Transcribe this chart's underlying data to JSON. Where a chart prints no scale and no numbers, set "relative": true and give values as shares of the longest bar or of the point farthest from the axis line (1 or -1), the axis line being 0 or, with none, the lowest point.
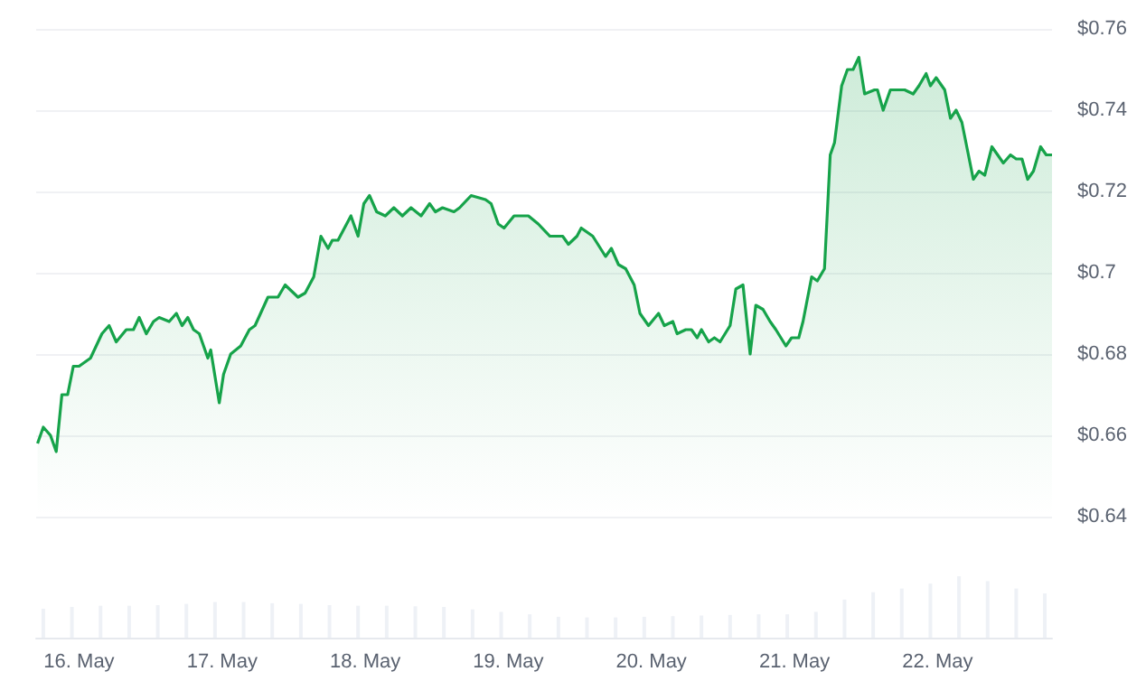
{
  "chart_data": [
    {
      "type": "area",
      "marker": "none",
      "grid": "y",
      "tick_labels": "y",
      "xlim": [
        "--05-15T16:48",
        "--05-22T19:12"
      ],
      "ylim": [
        0.64,
        0.76
      ],
      "yticks": [
        {
          "value": 0.64,
          "label": "$0.64"
        },
        {
          "value": 0.66,
          "label": "$0.66"
        },
        {
          "value": 0.68,
          "label": "$0.68"
        },
        {
          "value": 0.7,
          "label": "$0.7"
        },
        {
          "value": 0.72,
          "label": "$0.72"
        },
        {
          "value": 0.74,
          "label": "$0.74"
        },
        {
          "value": 0.76,
          "label": "$0.76"
        }
      ],
      "series": [
        {
          "color": "#16a34a",
          "x": [
            "--05-15T17:02",
            "--05-15T18:00",
            "--05-15T19:12",
            "--05-15T20:10",
            "--05-15T21:07",
            "--05-15T22:05",
            "--05-15T23:02",
            "--05-16T00:00",
            "--05-16T01:55",
            "--05-16T03:50",
            "--05-16T05:02",
            "--05-16T06:14",
            "--05-16T07:55",
            "--05-16T09:07",
            "--05-16T10:05",
            "--05-16T11:17",
            "--05-16T12:29",
            "--05-16T13:26",
            "--05-16T15:07",
            "--05-16T16:19",
            "--05-16T17:17",
            "--05-16T18:14",
            "--05-16T19:12",
            "--05-16T20:10",
            "--05-16T21:36",
            "--05-16T22:05",
            "--05-16T23:31",
            "--05-17T00:14",
            "--05-17T01:26",
            "--05-17T03:07",
            "--05-17T04:34",
            "--05-17T05:31",
            "--05-17T07:41",
            "--05-17T09:22",
            "--05-17T10:34",
            "--05-17T12:43",
            "--05-17T13:55",
            "--05-17T15:22",
            "--05-17T16:34",
            "--05-17T17:46",
            "--05-17T18:29",
            "--05-17T19:26",
            "--05-17T21:36",
            "--05-17T22:48",
            "--05-17T23:46",
            "--05-18T00:43",
            "--05-18T01:55",
            "--05-18T03:22",
            "--05-18T04:48",
            "--05-18T06:14",
            "--05-18T07:41",
            "--05-18T09:22",
            "--05-18T10:48",
            "--05-18T11:46",
            "--05-18T12:58",
            "--05-18T14:53",
            "--05-18T15:50",
            "--05-18T17:46",
            "--05-18T20:10",
            "--05-18T21:07",
            "--05-18T22:19",
            "--05-18T23:17",
            "--05-19T00:58",
            "--05-19T01:55",
            "--05-19T03:22",
            "--05-19T05:02",
            "--05-19T06:58",
            "--05-19T09:07",
            "--05-19T10:05",
            "--05-19T11:31",
            "--05-19T12:14",
            "--05-19T14:10",
            "--05-19T16:19",
            "--05-19T17:17",
            "--05-19T18:29",
            "--05-19T19:41",
            "--05-19T21:07",
            "--05-19T22:05",
            "--05-19T23:31",
            "--05-20T01:12",
            "--05-20T02:10",
            "--05-20T03:36",
            "--05-20T04:19",
            "--05-20T05:46",
            "--05-20T06:43",
            "--05-20T07:41",
            "--05-20T08:24",
            "--05-20T09:36",
            "--05-20T10:34",
            "--05-20T11:31",
            "--05-20T13:12",
            "--05-20T14:10",
            "--05-20T15:22",
            "--05-20T16:34",
            "--05-20T17:31",
            "--05-20T18:43",
            "--05-20T19:55",
            "--05-20T20:53",
            "--05-20T22:34",
            "--05-20T23:31",
            "--05-21T00:43",
            "--05-21T01:26",
            "--05-21T02:53",
            "--05-21T03:50",
            "--05-21T05:02",
            "--05-21T06:00",
            "--05-21T06:43",
            "--05-21T07:55",
            "--05-21T08:53",
            "--05-21T09:50",
            "--05-21T10:48",
            "--05-21T11:46",
            "--05-21T13:26",
            "--05-21T13:55",
            "--05-21T14:53",
            "--05-21T16:05",
            "--05-21T18:29",
            "--05-21T19:55",
            "--05-21T20:53",
            "--05-21T22:05",
            "--05-21T22:48",
            "--05-21T23:46",
            "--05-22T01:12",
            "--05-22T02:10",
            "--05-22T03:07",
            "--05-22T04:05",
            "--05-22T06:00",
            "--05-22T06:58",
            "--05-22T07:55",
            "--05-22T09:07",
            "--05-22T10:05",
            "--05-22T11:02",
            "--05-22T12:14",
            "--05-22T13:12",
            "--05-22T14:10",
            "--05-22T15:07",
            "--05-22T16:05",
            "--05-22T17:17",
            "--05-22T18:14",
            "--05-22T19:12"
          ],
          "values": [
            0.658,
            0.662,
            0.66,
            0.656,
            0.67,
            0.67,
            0.677,
            0.677,
            0.679,
            0.685,
            0.687,
            0.683,
            0.686,
            0.686,
            0.689,
            0.685,
            0.688,
            0.689,
            0.688,
            0.69,
            0.687,
            0.689,
            0.686,
            0.685,
            0.679,
            0.681,
            0.668,
            0.675,
            0.68,
            0.682,
            0.686,
            0.687,
            0.694,
            0.694,
            0.697,
            0.694,
            0.695,
            0.699,
            0.709,
            0.706,
            0.708,
            0.708,
            0.714,
            0.709,
            0.717,
            0.719,
            0.715,
            0.714,
            0.716,
            0.714,
            0.716,
            0.714,
            0.717,
            0.715,
            0.716,
            0.715,
            0.716,
            0.719,
            0.718,
            0.717,
            0.712,
            0.711,
            0.714,
            0.714,
            0.714,
            0.712,
            0.709,
            0.709,
            0.707,
            0.709,
            0.711,
            0.709,
            0.704,
            0.706,
            0.702,
            0.701,
            0.697,
            0.69,
            0.687,
            0.69,
            0.687,
            0.688,
            0.685,
            0.686,
            0.686,
            0.684,
            0.686,
            0.683,
            0.684,
            0.683,
            0.687,
            0.696,
            0.697,
            0.68,
            0.692,
            0.691,
            0.688,
            0.686,
            0.682,
            0.684,
            0.684,
            0.688,
            0.699,
            0.698,
            0.701,
            0.729,
            0.732,
            0.746,
            0.75,
            0.75,
            0.753,
            0.744,
            0.745,
            0.745,
            0.74,
            0.745,
            0.745,
            0.744,
            0.746,
            0.749,
            0.746,
            0.748,
            0.745,
            0.738,
            0.74,
            0.737,
            0.723,
            0.725,
            0.724,
            0.731,
            0.729,
            0.727,
            0.729,
            0.728,
            0.728,
            0.723,
            0.725,
            0.731,
            0.729,
            0.729
          ]
        }
      ]
    },
    {
      "type": "bar",
      "relative": true,
      "tick_labels": "x",
      "xlim": [
        "--05-15T16:48",
        "--05-22T19:12"
      ],
      "xticks": [
        {
          "value": "--05-16",
          "label": "16. May"
        },
        {
          "value": "--05-17",
          "label": "17. May"
        },
        {
          "value": "--05-18",
          "label": "18. May"
        },
        {
          "value": "--05-19",
          "label": "19. May"
        },
        {
          "value": "--05-20",
          "label": "20. May"
        },
        {
          "value": "--05-21",
          "label": "21. May"
        },
        {
          "value": "--05-22",
          "label": "22. May"
        }
      ],
      "series": [
        {
          "color": "#eef1f6",
          "x": [
            "--05-15T18:00",
            "--05-15T22:48",
            "--05-16T03:36",
            "--05-16T08:24",
            "--05-16T13:12",
            "--05-16T18:00",
            "--05-16T22:48",
            "--05-17T03:36",
            "--05-17T08:24",
            "--05-17T13:12",
            "--05-17T18:00",
            "--05-17T22:48",
            "--05-18T03:36",
            "--05-18T08:24",
            "--05-18T13:12",
            "--05-18T18:00",
            "--05-18T22:48",
            "--05-19T03:36",
            "--05-19T08:24",
            "--05-19T13:12",
            "--05-19T18:00",
            "--05-19T22:48",
            "--05-20T03:36",
            "--05-20T08:24",
            "--05-20T13:12",
            "--05-20T18:00",
            "--05-20T22:48",
            "--05-21T03:36",
            "--05-21T08:24",
            "--05-21T13:12",
            "--05-21T18:00",
            "--05-21T22:48",
            "--05-22T03:36",
            "--05-22T08:24",
            "--05-22T13:12",
            "--05-22T18:00"
          ],
          "values": [
            0.47,
            0.5,
            0.52,
            0.52,
            0.53,
            0.55,
            0.58,
            0.58,
            0.56,
            0.55,
            0.53,
            0.52,
            0.52,
            0.51,
            0.5,
            0.46,
            0.42,
            0.38,
            0.34,
            0.33,
            0.33,
            0.34,
            0.35,
            0.36,
            0.37,
            0.38,
            0.38,
            0.42,
            0.62,
            0.74,
            0.8,
            0.88,
            1,
            0.92,
            0.8,
            0.72
          ]
        }
      ]
    }
  ]
}
